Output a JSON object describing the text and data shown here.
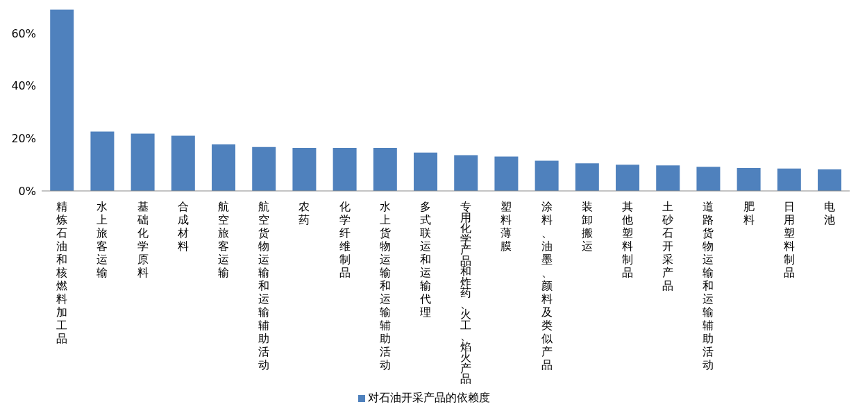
{
  "chart_data": {
    "type": "bar",
    "categories": [
      "精炼石油和核燃料加工品",
      "水上旅客运输",
      "基础化学原料",
      "合成材料",
      "航空旅客运输",
      "航空货物运输和运输辅助活动",
      "农药",
      "化学纤维制品",
      "水上货物运输和运输辅助活动",
      "多式联运和运输代理",
      "专用化学产品和炸药、火工、焰火产品",
      "塑料薄膜",
      "涂料、油墨、颜料及类似产品",
      "装卸搬运",
      "其他塑料制品",
      "土砂石开采产品",
      "道路货物运输和运输辅助活动",
      "肥料",
      "日用塑料制品",
      "电池"
    ],
    "series": [
      {
        "name": "对石油开采产品的依赖度",
        "color": "#4f81bd",
        "values": [
          69.0,
          22.6,
          21.8,
          21.0,
          17.7,
          16.7,
          16.4,
          16.4,
          16.4,
          14.6,
          13.6,
          13.1,
          11.5,
          10.5,
          10.0,
          9.7,
          9.2,
          8.7,
          8.5,
          8.2
        ]
      }
    ],
    "ylim": [
      0,
      70
    ],
    "yticks": [
      {
        "value": 0,
        "label": "0%"
      },
      {
        "value": 20,
        "label": "20%"
      },
      {
        "value": 40,
        "label": "40%"
      },
      {
        "value": 60,
        "label": "60%"
      }
    ],
    "legend": "bottom",
    "grid": false
  }
}
